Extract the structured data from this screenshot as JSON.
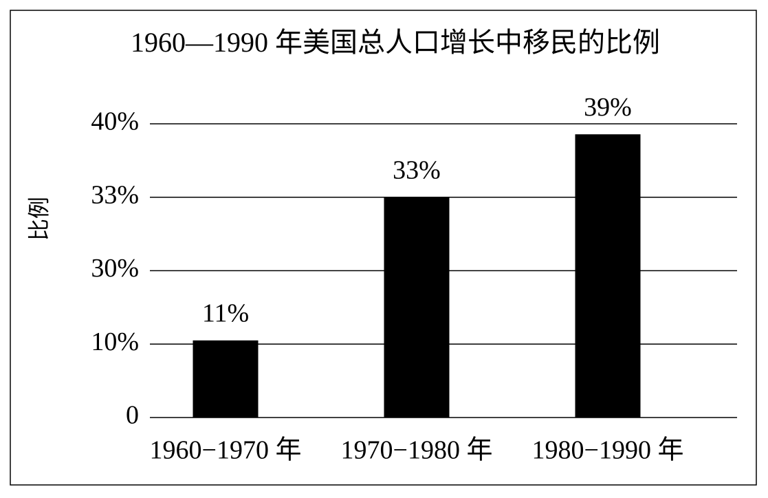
{
  "chart_data": {
    "type": "bar",
    "title": "1960—1990 年美国总人口增长中移民的比例",
    "y_label": "比例",
    "categories": [
      "1960−1970 年",
      "1970−1980 年",
      "1980−1990 年"
    ],
    "values": [
      11,
      33,
      39
    ],
    "value_labels": [
      "11%",
      "33%",
      "39%"
    ],
    "color": "#000000",
    "ylim": [
      0,
      40
    ],
    "yticks": [
      0,
      {
        "value": 10,
        "label": "10%"
      },
      {
        "value": 30,
        "label": "30%"
      },
      {
        "value": 33,
        "label": "33%"
      },
      {
        "value": 40,
        "label": "40%"
      }
    ],
    "grid": true
  }
}
